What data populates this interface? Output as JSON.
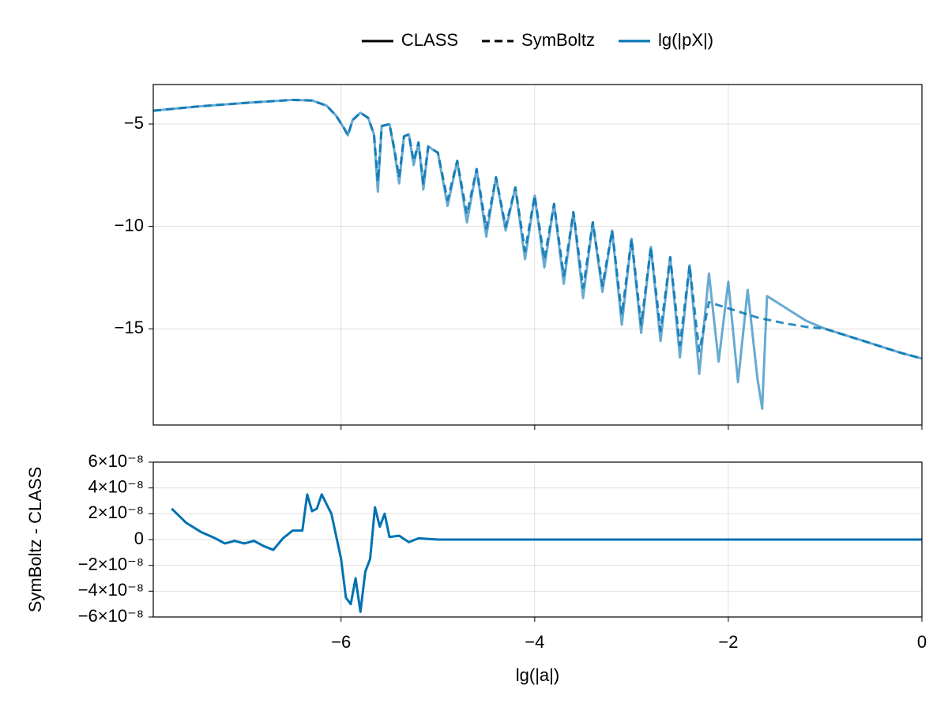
{
  "chart_data": [
    {
      "type": "line",
      "legend": "top",
      "legend_color": "#000000",
      "variable": {
        "name": "lg(|pX|)",
        "color": "#0072b2"
      },
      "grid": true,
      "xlim": [
        -7.94,
        0
      ],
      "ylim": [
        -19.7,
        -3.07
      ],
      "xticks": [
        -6,
        -4,
        -2,
        0
      ],
      "yticks": [
        {
          "value": -5,
          "label": "−5"
        },
        {
          "value": -10,
          "label": "−10"
        },
        {
          "value": -15,
          "label": "−15"
        }
      ],
      "x": [
        -7.94,
        -7.5,
        -7.0,
        -6.5,
        -6.3,
        -6.15,
        -6.05,
        -5.97,
        -5.93,
        -5.88,
        -5.8,
        -5.72,
        -5.66,
        -5.62,
        -5.58,
        -5.5,
        -5.45,
        -5.4,
        -5.35,
        -5.3,
        -5.25,
        -5.2,
        -5.15,
        -5.1,
        -5.0,
        -4.9,
        -4.8,
        -4.7,
        -4.6,
        -4.5,
        -4.4,
        -4.3,
        -4.2,
        -4.1,
        -4.0,
        -3.9,
        -3.8,
        -3.7,
        -3.6,
        -3.5,
        -3.4,
        -3.3,
        -3.2,
        -3.1,
        -3.0,
        -2.9,
        -2.8,
        -2.7,
        -2.6,
        -2.5,
        -2.4,
        -2.3,
        -2.2,
        -2.1,
        -2.0,
        -1.9,
        -1.8,
        -1.7,
        -1.65,
        -1.6,
        -1.4,
        -1.2,
        -1.0,
        -0.8,
        -0.6,
        -0.4,
        -0.2,
        0
      ],
      "series": [
        {
          "name": "CLASS",
          "linestyle": "solid",
          "color": "#0072b2",
          "values": [
            -4.35,
            -4.15,
            -3.97,
            -3.82,
            -3.85,
            -4.1,
            -4.6,
            -5.2,
            -5.55,
            -4.8,
            -4.45,
            -4.7,
            -5.5,
            -8.3,
            -5.1,
            -5.0,
            -6.3,
            -7.9,
            -5.6,
            -5.5,
            -7.0,
            -5.9,
            -8.2,
            -6.1,
            -6.4,
            -9.0,
            -6.8,
            -9.8,
            -7.2,
            -10.5,
            -7.6,
            -10.2,
            -8.1,
            -11.6,
            -8.5,
            -12.0,
            -8.9,
            -12.8,
            -9.3,
            -13.5,
            -9.8,
            -13.2,
            -10.2,
            -14.8,
            -10.6,
            -15.2,
            -11.0,
            -15.6,
            -11.5,
            -16.4,
            -11.9,
            -17.2,
            -12.3,
            -16.6,
            -12.7,
            -17.6,
            -13.1,
            -17.4,
            -18.9,
            -13.4,
            -14.0,
            -14.6,
            -15.0,
            -15.3,
            -15.6,
            -15.9,
            -16.2,
            -16.45
          ]
        },
        {
          "name": "SymBoltz",
          "linestyle": "dashed",
          "color": "#0072b2",
          "values": [
            -4.35,
            -4.15,
            -3.97,
            -3.82,
            -3.85,
            -4.1,
            -4.6,
            -5.2,
            -5.55,
            -4.8,
            -4.45,
            -4.7,
            -5.5,
            -7.8,
            -5.1,
            -5.0,
            -6.2,
            -7.6,
            -5.6,
            -5.5,
            -6.8,
            -5.9,
            -7.9,
            -6.1,
            -6.4,
            -8.7,
            -6.8,
            -9.4,
            -7.2,
            -10.1,
            -7.6,
            -10.0,
            -8.1,
            -11.2,
            -8.5,
            -11.6,
            -8.9,
            -12.4,
            -9.3,
            -13.0,
            -9.8,
            -12.9,
            -10.2,
            -14.3,
            -10.6,
            -14.8,
            -11.0,
            -15.1,
            -11.5,
            -15.8,
            -11.9,
            -16.1,
            -13.7,
            -13.85,
            -14.0,
            -14.15,
            -14.3,
            -14.45,
            -14.5,
            -14.55,
            -14.75,
            -14.9,
            -15.0,
            -15.3,
            -15.6,
            -15.9,
            -16.2,
            -16.45
          ]
        }
      ]
    },
    {
      "type": "line",
      "xlabel": "lg(|a|)",
      "ylabel": "SymBoltz - CLASS",
      "grid": true,
      "xlim": [
        -7.94,
        0
      ],
      "ylim": [
        -6e-08,
        6e-08
      ],
      "xticks": [
        {
          "value": -6,
          "label": "−6"
        },
        {
          "value": -4,
          "label": "−4"
        },
        {
          "value": -2,
          "label": "−2"
        },
        0
      ],
      "yticks": [
        {
          "value": -6e-08,
          "label": "−6×10⁻⁸"
        },
        {
          "value": -4e-08,
          "label": "−4×10⁻⁸"
        },
        {
          "value": -2e-08,
          "label": "−2×10⁻⁸"
        },
        0,
        {
          "value": 2e-08,
          "label": "2×10⁻⁸"
        },
        {
          "value": 4e-08,
          "label": "4×10⁻⁸"
        },
        {
          "value": 6e-08,
          "label": "6×10⁻⁸"
        }
      ],
      "x": [
        -7.75,
        -7.6,
        -7.45,
        -7.3,
        -7.2,
        -7.1,
        -7.0,
        -6.9,
        -6.8,
        -6.7,
        -6.6,
        -6.5,
        -6.4,
        -6.35,
        -6.3,
        -6.25,
        -6.2,
        -6.1,
        -6.0,
        -5.95,
        -5.9,
        -5.85,
        -5.8,
        -5.75,
        -5.7,
        -5.65,
        -5.6,
        -5.55,
        -5.5,
        -5.4,
        -5.3,
        -5.2,
        -5.0,
        -4.8,
        0
      ],
      "series": [
        {
          "color": "#0072b2",
          "values": [
            2.4e-08,
            1.3e-08,
            6e-09,
            1e-09,
            -3e-09,
            -1e-09,
            -3e-09,
            -1e-09,
            -5e-09,
            -8e-09,
            1e-09,
            7e-09,
            7e-09,
            3.5e-08,
            2.2e-08,
            2.4e-08,
            3.5e-08,
            2e-08,
            -1.5e-08,
            -4.5e-08,
            -5e-08,
            -3e-08,
            -5.6e-08,
            -2.5e-08,
            -1.5e-08,
            2.5e-08,
            1e-08,
            2e-08,
            2e-09,
            3e-09,
            -2e-09,
            1e-09,
            0,
            0,
            0
          ]
        }
      ]
    }
  ]
}
